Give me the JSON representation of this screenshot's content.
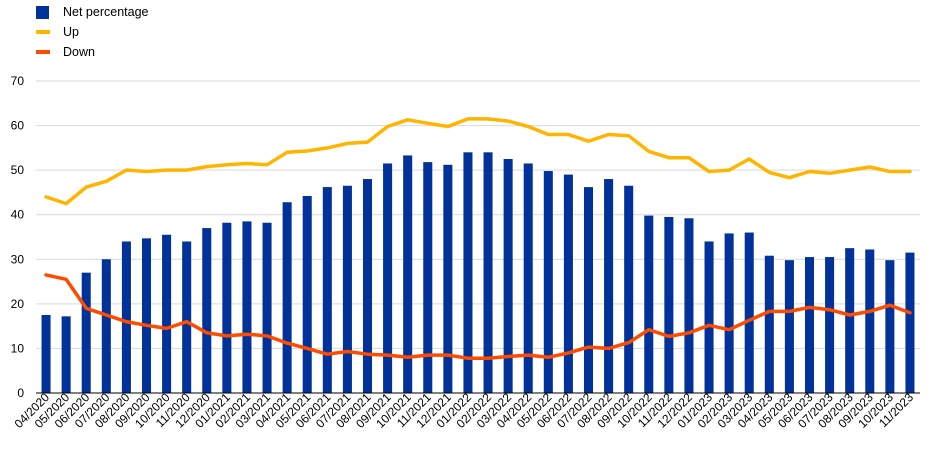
{
  "chart_data": {
    "type": "bar",
    "categories": [
      "04/2020",
      "05/2020",
      "06/2020",
      "07/2020",
      "08/2020",
      "09/2020",
      "10/2020",
      "11/2020",
      "12/2020",
      "01/2021",
      "02/2021",
      "03/2021",
      "04/2021",
      "05/2021",
      "06/2021",
      "07/2021",
      "08/2021",
      "09/2021",
      "10/2021",
      "11/2021",
      "12/2021",
      "01/2022",
      "02/2022",
      "03/2022",
      "04/2022",
      "05/2022",
      "06/2022",
      "07/2022",
      "08/2022",
      "09/2022",
      "10/2022",
      "11/2022",
      "12/2022",
      "01/2023",
      "02/2023",
      "03/2023",
      "04/2023",
      "05/2023",
      "06/2023",
      "07/2023",
      "08/2023",
      "09/2023",
      "10/2023",
      "11/2023"
    ],
    "series": [
      {
        "name": "Net percentage",
        "type": "bar",
        "color": "#003299",
        "values": [
          17.5,
          17.2,
          27,
          30,
          34,
          34.7,
          35.5,
          34,
          37,
          38.2,
          38.5,
          38.2,
          42.8,
          44.2,
          46.2,
          46.5,
          48,
          51.5,
          53.3,
          51.8,
          51.2,
          54,
          54,
          52.5,
          51.5,
          49.8,
          49,
          46.2,
          48,
          46.5,
          39.8,
          39.5,
          39.2,
          34,
          35.8,
          36,
          30.8,
          29.8,
          30.5,
          30.5,
          32.5,
          32.2,
          29.8,
          31.5
        ]
      },
      {
        "name": "Up",
        "type": "line",
        "color": "#FFB400",
        "values": [
          44,
          42.5,
          46.2,
          47.5,
          50,
          49.7,
          50,
          50,
          50.8,
          51.2,
          51.5,
          51.2,
          54,
          54.3,
          55,
          56,
          56.3,
          59.8,
          61.3,
          60.5,
          59.8,
          61.5,
          61.5,
          61,
          59.8,
          58,
          58,
          56.5,
          58,
          57.7,
          54.2,
          52.8,
          52.8,
          49.7,
          50,
          52.5,
          49.5,
          48.3,
          49.7,
          49.3,
          50,
          50.7,
          49.7,
          49.7
        ]
      },
      {
        "name": "Down",
        "type": "line",
        "color": "#FF4B00",
        "values": [
          26.5,
          25.5,
          19,
          17.5,
          16,
          15.2,
          14.5,
          16,
          13.5,
          12.8,
          13.2,
          12.8,
          11.2,
          10,
          8.7,
          9.3,
          8.7,
          8.5,
          8,
          8.5,
          8.5,
          7.8,
          7.8,
          8.2,
          8.5,
          8,
          9,
          10.3,
          10,
          11.3,
          14.2,
          12.7,
          13.5,
          15.2,
          14.2,
          16.3,
          18.3,
          18.3,
          19.2,
          18.7,
          17.5,
          18.3,
          19.7,
          18
        ]
      }
    ],
    "ylim": [
      0,
      70
    ],
    "yticks": [
      0,
      10,
      20,
      30,
      40,
      50,
      60,
      70
    ],
    "grid": true,
    "legend_position": "top-left"
  }
}
